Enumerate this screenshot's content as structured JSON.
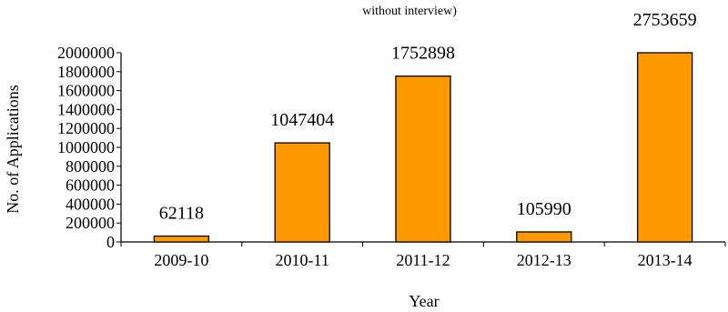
{
  "chart_data": {
    "type": "bar",
    "title": "without interview)",
    "xlabel": "Year",
    "ylabel": "No. of Applications",
    "categories": [
      "2009-10",
      "2010-11",
      "2011-12",
      "2012-13",
      "2013-14"
    ],
    "values": [
      62118,
      1047404,
      1752898,
      105990,
      2753659
    ],
    "data_labels": [
      "62118",
      "1047404",
      "1752898",
      "105990",
      "2753659"
    ],
    "y_ticks": [
      0,
      200000,
      400000,
      600000,
      800000,
      1000000,
      1200000,
      1400000,
      1600000,
      1800000,
      2000000
    ],
    "ylim": [
      0,
      2000000
    ],
    "bar_color": "#FF9900",
    "bar_edge_color": "#000000",
    "grid": false,
    "legend": "none"
  }
}
